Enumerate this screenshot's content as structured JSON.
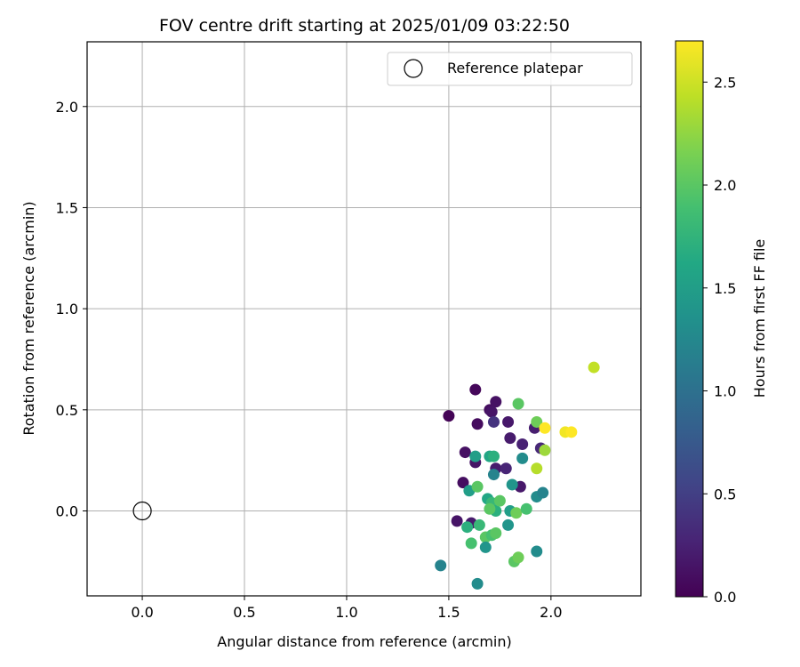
{
  "chart_data": {
    "type": "scatter",
    "title": "FOV centre drift starting at 2025/01/09 03:22:50",
    "xlabel": "Angular distance from reference (arcmin)",
    "ylabel": "Rotation from reference (arcmin)",
    "xlim": [
      -0.27,
      2.44
    ],
    "ylim": [
      -0.42,
      2.32
    ],
    "xticks": [
      0.0,
      0.5,
      1.0,
      1.5,
      2.0
    ],
    "xtick_labels": [
      "0.0",
      "0.5",
      "1.0",
      "1.5",
      "2.0"
    ],
    "yticks": [
      0.0,
      0.5,
      1.0,
      1.5,
      2.0
    ],
    "ytick_labels": [
      "0.0",
      "0.5",
      "1.0",
      "1.5",
      "2.0"
    ],
    "grid": true,
    "legend": {
      "position": "upper-right",
      "label": "Reference platepar",
      "marker": "open-circle"
    },
    "reference_point": {
      "x": 0.0,
      "y": 0.0
    },
    "colorbar": {
      "label": "Hours from first FF file",
      "colormap": "viridis",
      "range": [
        0.0,
        2.7
      ],
      "ticks": [
        0.0,
        0.5,
        1.0,
        1.5,
        2.0,
        2.5
      ],
      "tick_labels": [
        "0.0",
        "0.5",
        "1.0",
        "1.5",
        "2.0",
        "2.5"
      ]
    },
    "series": [
      {
        "points": [
          {
            "x": 1.5,
            "y": 0.47,
            "c": 0.02
          },
          {
            "x": 1.63,
            "y": 0.6,
            "c": 0.05
          },
          {
            "x": 1.64,
            "y": 0.43,
            "c": 0.08
          },
          {
            "x": 1.7,
            "y": 0.5,
            "c": 0.1
          },
          {
            "x": 1.73,
            "y": 0.54,
            "c": 0.12
          },
          {
            "x": 1.71,
            "y": 0.49,
            "c": 0.15
          },
          {
            "x": 1.79,
            "y": 0.44,
            "c": 0.18
          },
          {
            "x": 1.72,
            "y": 0.44,
            "c": 0.4
          },
          {
            "x": 1.8,
            "y": 0.36,
            "c": 0.2
          },
          {
            "x": 1.86,
            "y": 0.33,
            "c": 0.25
          },
          {
            "x": 1.92,
            "y": 0.41,
            "c": 0.22
          },
          {
            "x": 1.95,
            "y": 0.31,
            "c": 0.3
          },
          {
            "x": 1.58,
            "y": 0.29,
            "c": 0.12
          },
          {
            "x": 1.63,
            "y": 0.24,
            "c": 0.15
          },
          {
            "x": 1.73,
            "y": 0.21,
            "c": 0.2
          },
          {
            "x": 1.78,
            "y": 0.21,
            "c": 0.28
          },
          {
            "x": 1.57,
            "y": 0.14,
            "c": 0.1
          },
          {
            "x": 1.85,
            "y": 0.12,
            "c": 0.18
          },
          {
            "x": 1.54,
            "y": -0.05,
            "c": 0.15
          },
          {
            "x": 1.61,
            "y": -0.06,
            "c": 0.2
          },
          {
            "x": 1.63,
            "y": 0.27,
            "c": 1.5
          },
          {
            "x": 1.7,
            "y": 0.27,
            "c": 1.6
          },
          {
            "x": 1.72,
            "y": 0.27,
            "c": 1.7
          },
          {
            "x": 1.72,
            "y": 0.18,
            "c": 1.2
          },
          {
            "x": 1.86,
            "y": 0.26,
            "c": 1.3
          },
          {
            "x": 1.81,
            "y": 0.13,
            "c": 1.4
          },
          {
            "x": 1.93,
            "y": 0.07,
            "c": 1.3
          },
          {
            "x": 1.96,
            "y": 0.09,
            "c": 1.2
          },
          {
            "x": 1.6,
            "y": 0.1,
            "c": 1.5
          },
          {
            "x": 1.69,
            "y": 0.06,
            "c": 1.6
          },
          {
            "x": 1.71,
            "y": 0.04,
            "c": 1.8
          },
          {
            "x": 1.73,
            "y": 0.0,
            "c": 1.7
          },
          {
            "x": 1.75,
            "y": 0.05,
            "c": 2.0
          },
          {
            "x": 1.8,
            "y": 0.0,
            "c": 1.5
          },
          {
            "x": 1.83,
            "y": -0.01,
            "c": 2.1
          },
          {
            "x": 1.88,
            "y": 0.01,
            "c": 1.9
          },
          {
            "x": 1.59,
            "y": -0.08,
            "c": 1.7
          },
          {
            "x": 1.65,
            "y": -0.07,
            "c": 1.8
          },
          {
            "x": 1.61,
            "y": -0.16,
            "c": 1.9
          },
          {
            "x": 1.68,
            "y": -0.13,
            "c": 2.0
          },
          {
            "x": 1.71,
            "y": -0.12,
            "c": 1.9
          },
          {
            "x": 1.73,
            "y": -0.11,
            "c": 2.0
          },
          {
            "x": 1.68,
            "y": -0.18,
            "c": 1.4
          },
          {
            "x": 1.79,
            "y": -0.07,
            "c": 1.4
          },
          {
            "x": 1.82,
            "y": -0.25,
            "c": 2.0
          },
          {
            "x": 1.84,
            "y": -0.23,
            "c": 2.1
          },
          {
            "x": 1.93,
            "y": -0.2,
            "c": 1.3
          },
          {
            "x": 1.46,
            "y": -0.27,
            "c": 1.2
          },
          {
            "x": 1.64,
            "y": -0.36,
            "c": 1.3
          },
          {
            "x": 1.64,
            "y": 0.12,
            "c": 2.0
          },
          {
            "x": 1.7,
            "y": 0.01,
            "c": 2.0
          },
          {
            "x": 1.84,
            "y": 0.53,
            "c": 2.0
          },
          {
            "x": 1.93,
            "y": 0.44,
            "c": 2.1
          },
          {
            "x": 1.93,
            "y": 0.21,
            "c": 2.4
          },
          {
            "x": 1.97,
            "y": 0.3,
            "c": 2.3
          },
          {
            "x": 1.97,
            "y": 0.41,
            "c": 2.7
          },
          {
            "x": 2.07,
            "y": 0.39,
            "c": 2.65
          },
          {
            "x": 2.1,
            "y": 0.39,
            "c": 2.7
          },
          {
            "x": 2.21,
            "y": 0.71,
            "c": 2.45
          }
        ]
      }
    ]
  }
}
